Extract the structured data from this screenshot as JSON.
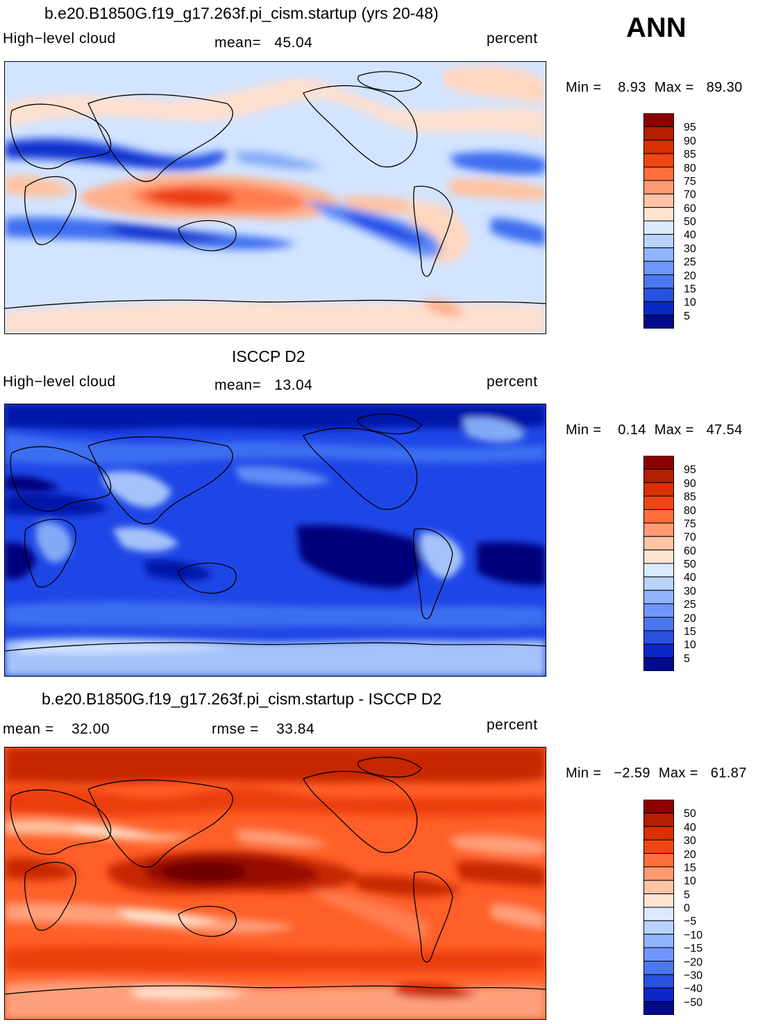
{
  "figure": {
    "season": "ANN",
    "colors": {
      "blues": [
        "#00007a",
        "#0014a8",
        "#0028c8",
        "#1e46e6",
        "#3c6ef0",
        "#5f8cf5",
        "#82aaf5",
        "#a5c3fa",
        "#cde1ff"
      ],
      "reds": [
        "#ffe6d2",
        "#ffc3a0",
        "#ffa07d",
        "#ff7d50",
        "#ff5f28",
        "#eb3c0a",
        "#c82800",
        "#960a00",
        "#6e0000"
      ],
      "coast": "#000000"
    }
  },
  "chart_data": [
    {
      "type": "heatmap",
      "id": "model",
      "title": "b.e20.B1850G.f19_g17.263f.pi_cism.startup (yrs 20-48)",
      "variable": "High−level cloud",
      "stat_text": "mean=   45.04",
      "units": "percent",
      "mean": 45.04,
      "min": 8.93,
      "max": 89.3,
      "minmax_text": "Min =    8.93  Max =   89.30",
      "colorbar_levels": [
        "95",
        "90",
        "85",
        "80",
        "75",
        "70",
        "60",
        "50",
        "40",
        "30",
        "25",
        "20",
        "15",
        "10",
        "5"
      ],
      "colorbar_colors": [
        "#8c0000",
        "#b41e00",
        "#d73200",
        "#f04614",
        "#ff6e3c",
        "#ff9b73",
        "#ffc3a5",
        "#ffe4d2",
        "#dceaff",
        "#b9d2ff",
        "#91b4ff",
        "#6e96ff",
        "#4b78f0",
        "#2850e1",
        "#0a28c3",
        "#000a8c"
      ]
    },
    {
      "type": "heatmap",
      "id": "obs",
      "title": "ISCCP D2",
      "variable": "High−level cloud",
      "stat_text": "mean=   13.04",
      "units": "percent",
      "mean": 13.04,
      "min": 0.14,
      "max": 47.54,
      "minmax_text": "Min =    0.14  Max =   47.54",
      "colorbar_levels": [
        "95",
        "90",
        "85",
        "80",
        "75",
        "70",
        "60",
        "50",
        "40",
        "30",
        "25",
        "20",
        "15",
        "10",
        "5"
      ],
      "colorbar_colors": [
        "#8c0000",
        "#b41e00",
        "#d73200",
        "#f04614",
        "#ff6e3c",
        "#ff9b73",
        "#ffc3a5",
        "#ffe4d2",
        "#dceaff",
        "#b9d2ff",
        "#91b4ff",
        "#6e96ff",
        "#4b78f0",
        "#2850e1",
        "#0a28c3",
        "#000a8c"
      ]
    },
    {
      "type": "heatmap",
      "id": "diff",
      "title": "b.e20.B1850G.f19_g17.263f.pi_cism.startup - ISCCP D2",
      "stat_text": "mean =    32.00",
      "rmse_text": "rmse =    33.84",
      "units": "percent",
      "mean": 32.0,
      "rmse": 33.84,
      "min": -2.59,
      "max": 61.87,
      "minmax_text": "Min =   −2.59  Max =   61.87",
      "colorbar_levels": [
        "50",
        "40",
        "30",
        "20",
        "15",
        "10",
        "5",
        "0",
        "−5",
        "−10",
        "−15",
        "−20",
        "−30",
        "−40",
        "−50"
      ],
      "colorbar_colors": [
        "#8c0000",
        "#b41e00",
        "#d73200",
        "#f04614",
        "#ff6e3c",
        "#ff9b73",
        "#ffc3a5",
        "#ffe4d2",
        "#dceaff",
        "#b9d2ff",
        "#91b4ff",
        "#6e96ff",
        "#4b78f0",
        "#2850e1",
        "#0a28c3",
        "#000a8c"
      ]
    }
  ]
}
